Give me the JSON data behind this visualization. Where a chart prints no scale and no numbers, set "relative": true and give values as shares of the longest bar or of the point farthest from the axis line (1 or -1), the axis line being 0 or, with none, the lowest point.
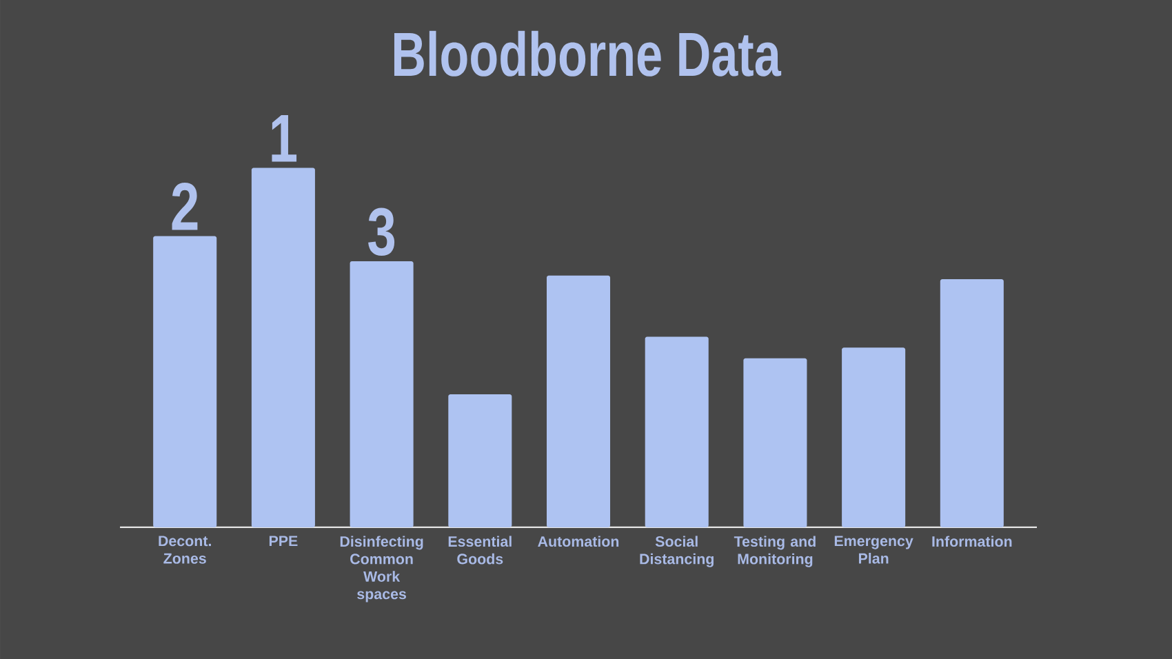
{
  "chart_data": {
    "type": "bar",
    "title": "Bloodborne Data",
    "categories": [
      "Decont. Zones",
      "PPE",
      "Disinfecting Common Work spaces",
      "Essential Goods",
      "Automation",
      "Social Distancing",
      "Testing and Monitoring",
      "Emergency Plan",
      "Information"
    ],
    "values": [
      0.81,
      1,
      0.74,
      0.37,
      0.7,
      0.53,
      0.47,
      0.5,
      0.69
    ],
    "color": "#aec3f2",
    "relative": true,
    "annotations": [
      {
        "text": "2",
        "x": "Decont. Zones",
        "y": 0.81
      },
      {
        "text": "1",
        "x": "PPE",
        "y": 1
      },
      {
        "text": "3",
        "x": "Disinfecting Common Work spaces",
        "y": 0.74
      }
    ]
  }
}
